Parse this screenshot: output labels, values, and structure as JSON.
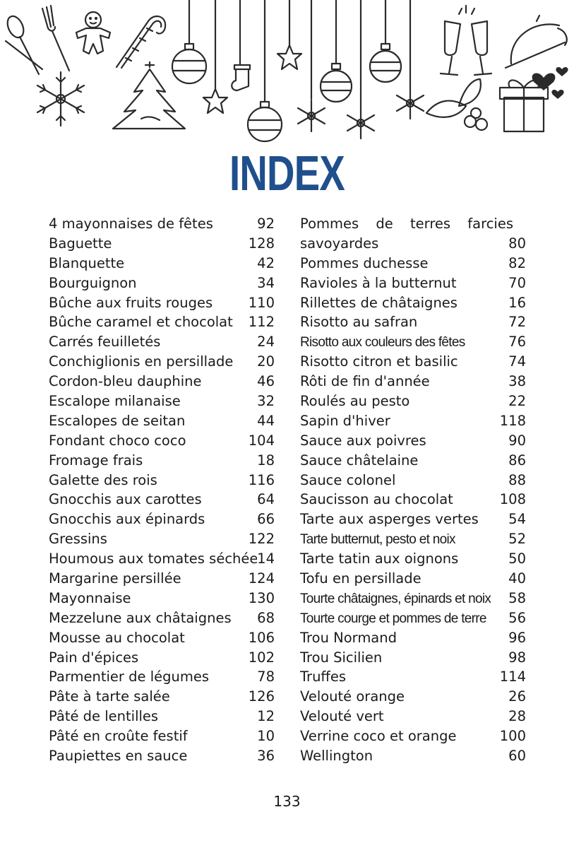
{
  "title": "INDEX",
  "page_number": "133",
  "colors": {
    "title": "#1f4f8c",
    "text": "#1a1a1a"
  },
  "decoration_icons": [
    "spoon-fork-icon",
    "gingerbread-man-icon",
    "candy-cane-icon",
    "snowflake-icon",
    "christmas-tree-icon",
    "bauble-icon",
    "stocking-icon",
    "star-icon",
    "champagne-glasses-icon",
    "cloche-icon",
    "holly-icon",
    "gift-box-icon",
    "hearts-icon"
  ],
  "left_entries": [
    {
      "name": "4 mayonnaises de fêtes",
      "page": "92"
    },
    {
      "name": "Baguette",
      "page": "128"
    },
    {
      "name": "Blanquette",
      "page": "42"
    },
    {
      "name": "Bourguignon",
      "page": "34"
    },
    {
      "name": "Bûche aux fruits rouges",
      "page": "110"
    },
    {
      "name": "Bûche caramel et chocolat",
      "page": "112"
    },
    {
      "name": "Carrés feuilletés",
      "page": "24"
    },
    {
      "name": "Conchiglionis en persillade",
      "page": "20"
    },
    {
      "name": "Cordon-bleu dauphine",
      "page": "46"
    },
    {
      "name": "Escalope milanaise",
      "page": "32"
    },
    {
      "name": "Escalopes de seitan",
      "page": "44"
    },
    {
      "name": "Fondant choco coco",
      "page": "104"
    },
    {
      "name": "Fromage frais",
      "page": "18"
    },
    {
      "name": "Galette des rois",
      "page": "116"
    },
    {
      "name": "Gnocchis aux carottes",
      "page": "64"
    },
    {
      "name": "Gnocchis aux épinards",
      "page": "66"
    },
    {
      "name": "Gressins",
      "page": "122"
    },
    {
      "name": "Houmous aux tomates séchées",
      "page": "14"
    },
    {
      "name": "Margarine persillée",
      "page": "124"
    },
    {
      "name": "Mayonnaise",
      "page": "130"
    },
    {
      "name": "Mezzelune aux châtaignes",
      "page": "68"
    },
    {
      "name": "Mousse au chocolat",
      "page": "106"
    },
    {
      "name": "Pain d'épices",
      "page": "102"
    },
    {
      "name": "Parmentier de légumes",
      "page": "78"
    },
    {
      "name": "Pâte à tarte salée",
      "page": "126"
    },
    {
      "name": "Pâté de lentilles",
      "page": "12"
    },
    {
      "name": "Pâté en croûte festif",
      "page": "10"
    },
    {
      "name": "Paupiettes en sauce",
      "page": "36"
    }
  ],
  "right_entries": [
    {
      "name": "Pommes de terres farcies",
      "page": ""
    },
    {
      "name": "savoyardes",
      "page": "80"
    },
    {
      "name": "Pommes duchesse",
      "page": "82"
    },
    {
      "name": "Ravioles à la butternut",
      "page": "70"
    },
    {
      "name": "Rillettes de châtaignes",
      "page": "16"
    },
    {
      "name": "Risotto au safran",
      "page": "72"
    },
    {
      "name": "Risotto aux couleurs des fêtes",
      "page": "76"
    },
    {
      "name": "Risotto citron et basilic",
      "page": "74"
    },
    {
      "name": "Rôti de fin d'année",
      "page": "38"
    },
    {
      "name": "Roulés au pesto",
      "page": "22"
    },
    {
      "name": "Sapin d'hiver",
      "page": "118"
    },
    {
      "name": "Sauce aux poivres",
      "page": "90"
    },
    {
      "name": "Sauce châtelaine",
      "page": "86"
    },
    {
      "name": "Sauce colonel",
      "page": "88"
    },
    {
      "name": "Saucisson au chocolat",
      "page": "108"
    },
    {
      "name": "Tarte aux asperges vertes",
      "page": "54"
    },
    {
      "name": "Tarte butternut, pesto et noix",
      "page": "52"
    },
    {
      "name": "Tarte tatin aux oignons",
      "page": "50"
    },
    {
      "name": "Tofu en persillade",
      "page": "40"
    },
    {
      "name": "Tourte châtaignes, épinards et noix",
      "page": "58"
    },
    {
      "name": "Tourte courge et pommes de terre",
      "page": "56"
    },
    {
      "name": "Trou Normand",
      "page": "96"
    },
    {
      "name": "Trou Sicilien",
      "page": "98"
    },
    {
      "name": "Truffes",
      "page": "114"
    },
    {
      "name": "Velouté orange",
      "page": "26"
    },
    {
      "name": "Velouté vert",
      "page": "28"
    },
    {
      "name": "Verrine coco et orange",
      "page": "100"
    },
    {
      "name": "Wellington",
      "page": "60"
    }
  ]
}
